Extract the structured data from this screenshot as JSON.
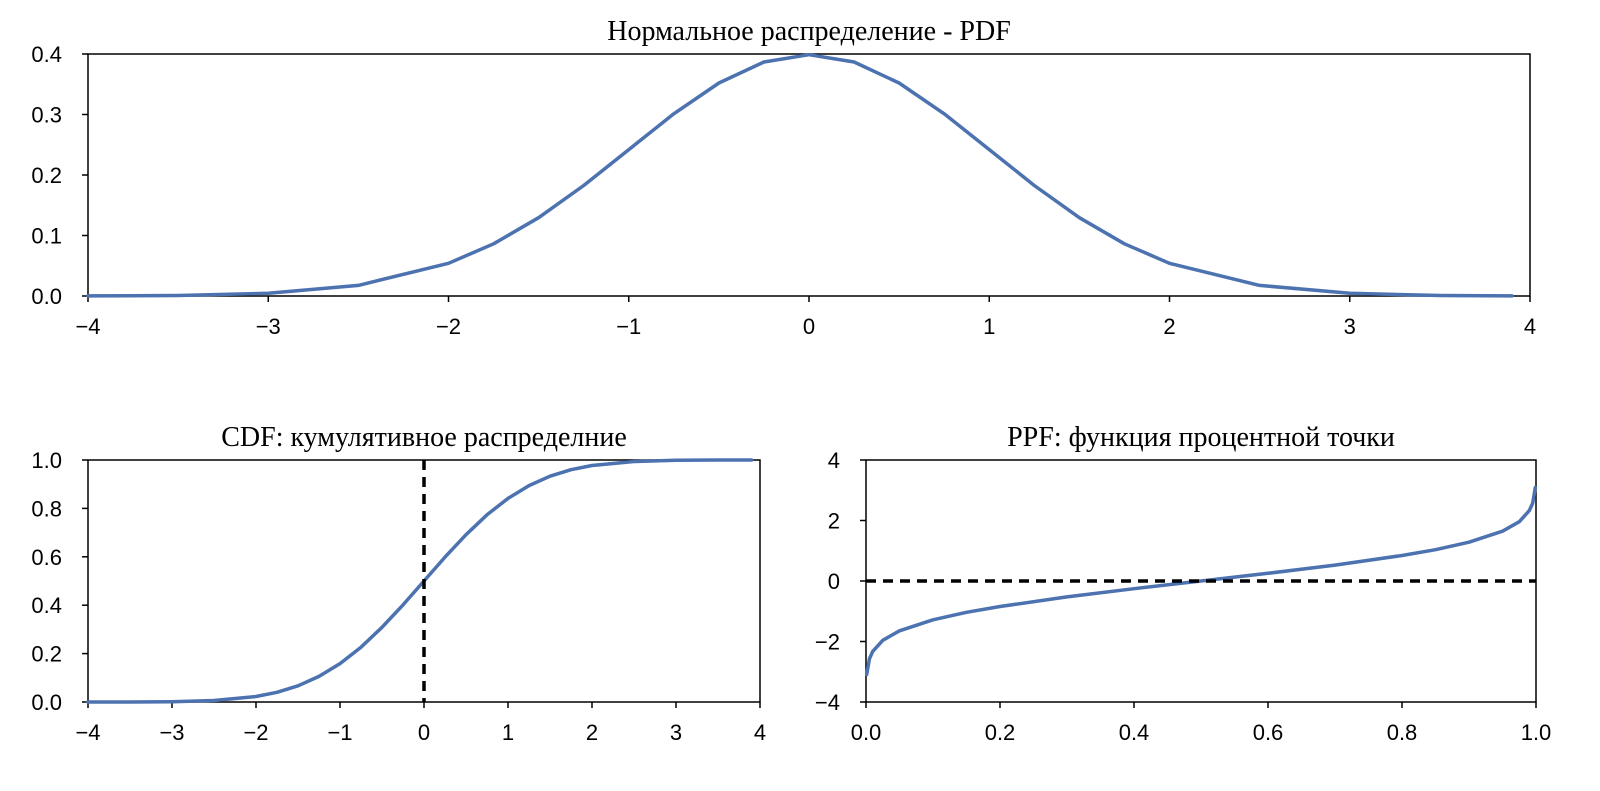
{
  "chart_data": [
    {
      "id": "pdf",
      "type": "line",
      "title": "Нормальное распределение - PDF",
      "xlabel": "",
      "ylabel": "",
      "xlim": [
        -4,
        4
      ],
      "ylim": [
        0,
        0.4
      ],
      "grid": false,
      "x_ticks": [
        -4,
        -3,
        -2,
        -1,
        0,
        1,
        2,
        3,
        4
      ],
      "x_tick_labels": [
        "−4",
        "−3",
        "−2",
        "−1",
        "0",
        "1",
        "2",
        "3",
        "4"
      ],
      "y_ticks": [
        0.0,
        0.1,
        0.2,
        0.3,
        0.4
      ],
      "y_tick_labels": [
        "0.0",
        "0.1",
        "0.2",
        "0.3",
        "0.4"
      ],
      "series": [
        {
          "color": "#4c72b0",
          "x": [
            -4.0,
            -3.5,
            -3.0,
            -2.5,
            -2.0,
            -1.75,
            -1.5,
            -1.25,
            -1.0,
            -0.75,
            -0.5,
            -0.25,
            0.0,
            0.25,
            0.5,
            0.75,
            1.0,
            1.25,
            1.5,
            1.75,
            2.0,
            2.5,
            3.0,
            3.5,
            3.9
          ],
          "y": [
            0.0001,
            0.0009,
            0.0044,
            0.0175,
            0.054,
            0.0863,
            0.1295,
            0.1826,
            0.242,
            0.3011,
            0.3521,
            0.3867,
            0.3989,
            0.3867,
            0.3521,
            0.3011,
            0.242,
            0.1826,
            0.1295,
            0.0863,
            0.054,
            0.0175,
            0.0044,
            0.0009,
            0.0002
          ]
        }
      ],
      "ref_lines": []
    },
    {
      "id": "cdf",
      "type": "line",
      "title": "CDF: кумулятивное распределние",
      "xlabel": "",
      "ylabel": "",
      "xlim": [
        -4,
        4
      ],
      "ylim": [
        0,
        1
      ],
      "grid": false,
      "x_ticks": [
        -4,
        -3,
        -2,
        -1,
        0,
        1,
        2,
        3,
        4
      ],
      "x_tick_labels": [
        "−4",
        "−3",
        "−2",
        "−1",
        "0",
        "1",
        "2",
        "3",
        "4"
      ],
      "y_ticks": [
        0.0,
        0.2,
        0.4,
        0.6,
        0.8,
        1.0
      ],
      "y_tick_labels": [
        "0.0",
        "0.2",
        "0.4",
        "0.6",
        "0.8",
        "1.0"
      ],
      "series": [
        {
          "color": "#4c72b0",
          "x": [
            -4.0,
            -3.5,
            -3.0,
            -2.5,
            -2.0,
            -1.75,
            -1.5,
            -1.25,
            -1.0,
            -0.75,
            -0.5,
            -0.25,
            0.0,
            0.25,
            0.5,
            0.75,
            1.0,
            1.25,
            1.5,
            1.75,
            2.0,
            2.5,
            3.0,
            3.5,
            3.9
          ],
          "y": [
            0.0,
            0.0002,
            0.0013,
            0.0062,
            0.0228,
            0.0401,
            0.0668,
            0.1056,
            0.1587,
            0.2266,
            0.3085,
            0.4013,
            0.5,
            0.5987,
            0.6915,
            0.7734,
            0.8413,
            0.8944,
            0.9332,
            0.9599,
            0.9772,
            0.9938,
            0.9987,
            0.9998,
            1.0
          ]
        }
      ],
      "ref_lines": [
        {
          "orientation": "vertical",
          "value": 0,
          "style": "dashed",
          "color": "#000000"
        }
      ]
    },
    {
      "id": "ppf",
      "type": "line",
      "title": "PPF: функция процентной точки",
      "xlabel": "",
      "ylabel": "",
      "xlim": [
        0,
        1
      ],
      "ylim": [
        -4,
        4
      ],
      "grid": false,
      "x_ticks": [
        0.0,
        0.2,
        0.4,
        0.6,
        0.8,
        1.0
      ],
      "x_tick_labels": [
        "0.0",
        "0.2",
        "0.4",
        "0.6",
        "0.8",
        "1.0"
      ],
      "y_ticks": [
        -4,
        -2,
        0,
        2,
        4
      ],
      "y_tick_labels": [
        "−4",
        "−2",
        "0",
        "2",
        "4"
      ],
      "series": [
        {
          "color": "#4c72b0",
          "x": [
            0.001,
            0.005,
            0.01,
            0.025,
            0.05,
            0.1,
            0.15,
            0.2,
            0.3,
            0.4,
            0.5,
            0.6,
            0.7,
            0.8,
            0.85,
            0.9,
            0.95,
            0.975,
            0.99,
            0.995,
            0.999
          ],
          "y": [
            -3.09,
            -2.576,
            -2.326,
            -1.96,
            -1.645,
            -1.282,
            -1.036,
            -0.842,
            -0.524,
            -0.253,
            0.0,
            0.253,
            0.524,
            0.842,
            1.036,
            1.282,
            1.645,
            1.96,
            2.326,
            2.576,
            3.09
          ]
        }
      ],
      "ref_lines": [
        {
          "orientation": "horizontal",
          "value": 0,
          "style": "dashed",
          "color": "#000000"
        }
      ]
    }
  ]
}
